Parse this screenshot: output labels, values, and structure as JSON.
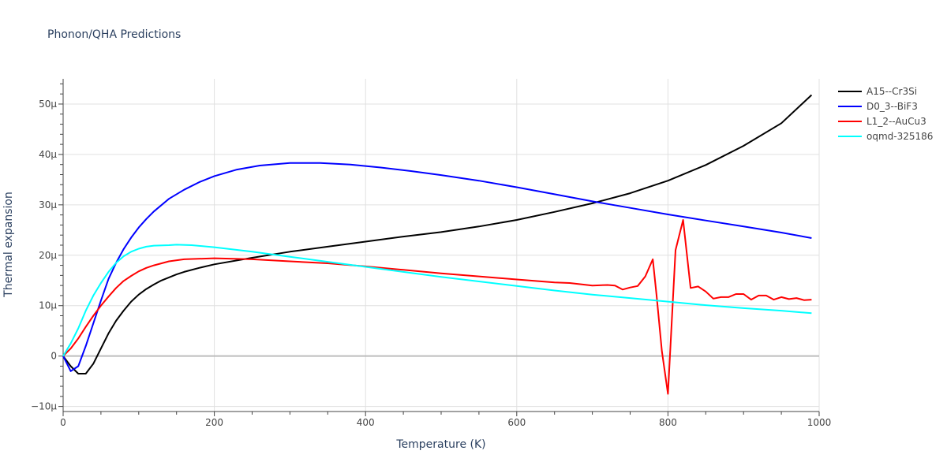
{
  "chart_data": {
    "type": "line",
    "title": "Phonon/QHA Predictions",
    "xlabel": "Temperature (K)",
    "ylabel": "Thermal expansion",
    "xlim": [
      0,
      1000
    ],
    "ylim": [
      -11,
      55
    ],
    "grid": true,
    "legend_position": "top-right",
    "x_ticks": [
      0,
      200,
      400,
      600,
      800,
      1000
    ],
    "x_tick_labels": [
      "0",
      "200",
      "400",
      "600",
      "800",
      "1000"
    ],
    "y_ticks": [
      -10,
      0,
      10,
      20,
      30,
      40,
      50
    ],
    "y_tick_labels": [
      "−10μ",
      "0",
      "10μ",
      "20μ",
      "30μ",
      "40μ",
      "50μ"
    ],
    "series": [
      {
        "name": "A15--Cr3Si",
        "color": "#000000",
        "points": [
          [
            0,
            0
          ],
          [
            10,
            -2
          ],
          [
            20,
            -3.5
          ],
          [
            30,
            -3.5
          ],
          [
            40,
            -1.5
          ],
          [
            50,
            1.5
          ],
          [
            60,
            4.5
          ],
          [
            70,
            7
          ],
          [
            80,
            9
          ],
          [
            90,
            10.8
          ],
          [
            100,
            12.2
          ],
          [
            110,
            13.3
          ],
          [
            120,
            14.2
          ],
          [
            130,
            15
          ],
          [
            140,
            15.6
          ],
          [
            150,
            16.2
          ],
          [
            160,
            16.7
          ],
          [
            180,
            17.5
          ],
          [
            200,
            18.2
          ],
          [
            250,
            19.5
          ],
          [
            300,
            20.7
          ],
          [
            350,
            21.7
          ],
          [
            400,
            22.7
          ],
          [
            450,
            23.7
          ],
          [
            500,
            24.6
          ],
          [
            550,
            25.7
          ],
          [
            600,
            27
          ],
          [
            650,
            28.6
          ],
          [
            700,
            30.3
          ],
          [
            750,
            32.3
          ],
          [
            800,
            34.8
          ],
          [
            850,
            37.9
          ],
          [
            900,
            41.7
          ],
          [
            950,
            46.2
          ],
          [
            990,
            51.8
          ]
        ]
      },
      {
        "name": "D0_3--BiF3",
        "color": "#0000ff",
        "points": [
          [
            0,
            0
          ],
          [
            10,
            -3
          ],
          [
            20,
            -2
          ],
          [
            30,
            2
          ],
          [
            40,
            6.5
          ],
          [
            50,
            11
          ],
          [
            60,
            15.3
          ],
          [
            70,
            18.5
          ],
          [
            80,
            21.2
          ],
          [
            90,
            23.5
          ],
          [
            100,
            25.5
          ],
          [
            110,
            27.2
          ],
          [
            120,
            28.7
          ],
          [
            140,
            31.2
          ],
          [
            160,
            33
          ],
          [
            180,
            34.5
          ],
          [
            200,
            35.7
          ],
          [
            230,
            37
          ],
          [
            260,
            37.8
          ],
          [
            300,
            38.3
          ],
          [
            340,
            38.3
          ],
          [
            380,
            38
          ],
          [
            420,
            37.4
          ],
          [
            460,
            36.7
          ],
          [
            500,
            35.9
          ],
          [
            550,
            34.8
          ],
          [
            600,
            33.5
          ],
          [
            650,
            32.1
          ],
          [
            700,
            30.7
          ],
          [
            750,
            29.4
          ],
          [
            800,
            28.1
          ],
          [
            850,
            26.9
          ],
          [
            900,
            25.7
          ],
          [
            950,
            24.5
          ],
          [
            990,
            23.4
          ]
        ]
      },
      {
        "name": "L1_2--AuCu3",
        "color": "#ff0000",
        "points": [
          [
            0,
            0
          ],
          [
            10,
            1.5
          ],
          [
            20,
            3.5
          ],
          [
            30,
            5.8
          ],
          [
            40,
            8
          ],
          [
            50,
            10
          ],
          [
            60,
            11.8
          ],
          [
            70,
            13.5
          ],
          [
            80,
            14.9
          ],
          [
            90,
            15.9
          ],
          [
            100,
            16.8
          ],
          [
            110,
            17.5
          ],
          [
            120,
            18
          ],
          [
            140,
            18.8
          ],
          [
            160,
            19.2
          ],
          [
            200,
            19.4
          ],
          [
            250,
            19.2
          ],
          [
            300,
            18.8
          ],
          [
            350,
            18.4
          ],
          [
            400,
            17.8
          ],
          [
            450,
            17.1
          ],
          [
            500,
            16.4
          ],
          [
            550,
            15.8
          ],
          [
            600,
            15.2
          ],
          [
            650,
            14.6
          ],
          [
            670,
            14.5
          ],
          [
            700,
            14
          ],
          [
            720,
            14.1
          ],
          [
            730,
            14
          ],
          [
            740,
            13.2
          ],
          [
            750,
            13.6
          ],
          [
            760,
            13.9
          ],
          [
            770,
            15.8
          ],
          [
            780,
            19.2
          ],
          [
            785,
            12
          ],
          [
            792,
            1
          ],
          [
            800,
            -7.5
          ],
          [
            810,
            21
          ],
          [
            820,
            27
          ],
          [
            830,
            13.5
          ],
          [
            840,
            13.8
          ],
          [
            850,
            12.8
          ],
          [
            860,
            11.4
          ],
          [
            870,
            11.7
          ],
          [
            880,
            11.7
          ],
          [
            890,
            12.3
          ],
          [
            900,
            12.3
          ],
          [
            910,
            11.2
          ],
          [
            920,
            12
          ],
          [
            930,
            12
          ],
          [
            940,
            11.2
          ],
          [
            950,
            11.7
          ],
          [
            960,
            11.3
          ],
          [
            970,
            11.5
          ],
          [
            980,
            11.1
          ],
          [
            990,
            11.2
          ]
        ]
      },
      {
        "name": "oqmd-325186",
        "color": "#00ffff",
        "points": [
          [
            0,
            0
          ],
          [
            10,
            2.5
          ],
          [
            20,
            5.5
          ],
          [
            30,
            9
          ],
          [
            40,
            12
          ],
          [
            50,
            14.5
          ],
          [
            60,
            16.7
          ],
          [
            70,
            18.5
          ],
          [
            80,
            19.8
          ],
          [
            90,
            20.7
          ],
          [
            100,
            21.3
          ],
          [
            110,
            21.7
          ],
          [
            120,
            21.9
          ],
          [
            140,
            22
          ],
          [
            150,
            22.1
          ],
          [
            170,
            22
          ],
          [
            200,
            21.6
          ],
          [
            250,
            20.7
          ],
          [
            300,
            19.7
          ],
          [
            350,
            18.7
          ],
          [
            400,
            17.7
          ],
          [
            450,
            16.7
          ],
          [
            500,
            15.7
          ],
          [
            550,
            14.8
          ],
          [
            600,
            13.9
          ],
          [
            650,
            13
          ],
          [
            700,
            12.2
          ],
          [
            750,
            11.5
          ],
          [
            800,
            10.8
          ],
          [
            850,
            10.1
          ],
          [
            900,
            9.5
          ],
          [
            950,
            9
          ],
          [
            990,
            8.5
          ]
        ]
      }
    ]
  }
}
